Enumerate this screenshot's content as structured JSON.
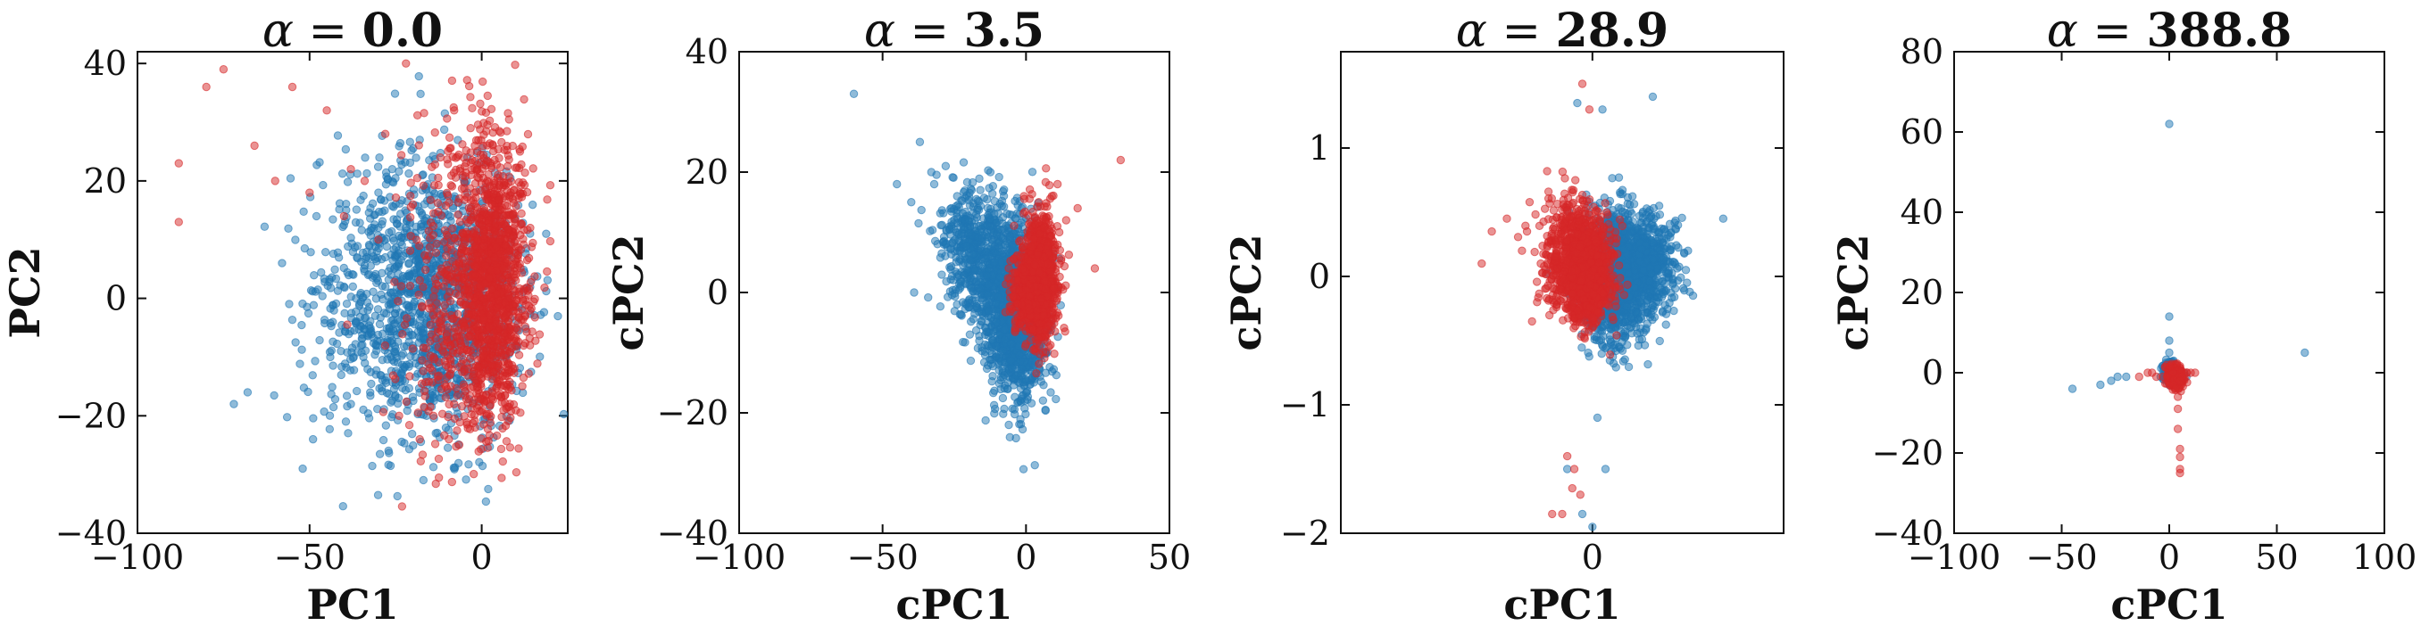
{
  "chart_data": [
    {
      "type": "scatter",
      "title": "α = 0.0",
      "title_symbol": "α",
      "title_value": "0.0",
      "xlabel": "PC1",
      "ylabel": "PC2",
      "xlim": [
        -100,
        25
      ],
      "ylim": [
        -40,
        42
      ],
      "xticks": [
        -100,
        -50,
        0
      ],
      "xtick_labels": [
        "−100",
        "−50",
        "0"
      ],
      "yticks": [
        -40,
        -20,
        0,
        20,
        40
      ],
      "ytick_labels": [
        "−40",
        "−20",
        "0",
        "20",
        "40"
      ],
      "series": [
        {
          "name": "background-blue",
          "color": "#1f77b4",
          "points": [
            [
              -72,
              -18
            ],
            [
              -68,
              -16
            ],
            [
              -52,
              -29
            ],
            [
              -49,
              -24
            ],
            [
              -30,
              18
            ],
            [
              -22,
              12
            ],
            [
              -18,
              27
            ],
            [
              -40,
              2
            ],
            [
              -35,
              -8
            ],
            [
              -12,
              16
            ],
            [
              -28,
              -14
            ],
            [
              -44,
              -10
            ],
            [
              -58,
              6
            ],
            [
              -16,
              -20
            ],
            [
              -24,
              6
            ],
            [
              -8,
              10
            ],
            [
              -14,
              -10
            ],
            [
              -32,
              12
            ],
            [
              -20,
              -4
            ],
            [
              -6,
              -14
            ],
            [
              -38,
              -18
            ],
            [
              -48,
              14
            ],
            [
              -26,
              22
            ],
            [
              -10,
              2
            ]
          ],
          "cloud": [
            {
              "center": [
                -12,
                0
              ],
              "spread": [
                12,
                11
              ],
              "count": 1100
            },
            {
              "center": [
                -30,
                -2
              ],
              "spread": [
                12,
                12
              ],
              "count": 360
            }
          ]
        },
        {
          "name": "foreground-red",
          "color": "#d62728",
          "points": [
            [
              -75,
              39
            ],
            [
              -55,
              36
            ],
            [
              -45,
              32
            ],
            [
              -22,
              40
            ],
            [
              -8,
              32
            ],
            [
              -88,
              23
            ],
            [
              -88,
              13
            ],
            [
              -80,
              36
            ],
            [
              -66,
              26
            ],
            [
              -60,
              20
            ],
            [
              -50,
              18
            ],
            [
              -40,
              14
            ],
            [
              -34,
              20
            ],
            [
              -30,
              10
            ],
            [
              -18,
              -24
            ],
            [
              -24,
              -20
            ],
            [
              -14,
              -20
            ],
            [
              -8,
              -18
            ],
            [
              -4,
              -12
            ],
            [
              -28,
              28
            ],
            [
              -38,
              22
            ],
            [
              -12,
              24
            ],
            [
              -20,
              16
            ],
            [
              -2,
              26
            ]
          ],
          "cloud": [
            {
              "center": [
                3,
                3
              ],
              "spread": [
                5,
                12
              ],
              "count": 1200
            },
            {
              "center": [
                -6,
                2
              ],
              "spread": [
                9,
                14
              ],
              "count": 420
            }
          ]
        }
      ]
    },
    {
      "type": "scatter",
      "title": "α = 3.5",
      "title_symbol": "α",
      "title_value": "3.5",
      "xlabel": "cPC1",
      "ylabel": "cPC2",
      "xlim": [
        -100,
        50
      ],
      "ylim": [
        -40,
        40
      ],
      "xticks": [
        -100,
        -50,
        0,
        50
      ],
      "xtick_labels": [
        "−100",
        "−50",
        "0",
        "50"
      ],
      "yticks": [
        -40,
        -20,
        0,
        20,
        40
      ],
      "ytick_labels": [
        "−40",
        "−20",
        "0",
        "20",
        "40"
      ],
      "series": [
        {
          "name": "background-blue",
          "color": "#1f77b4",
          "points": [
            [
              -60,
              33
            ],
            [
              -37,
              25
            ],
            [
              -33,
              20
            ],
            [
              -28,
              21
            ],
            [
              -45,
              18
            ],
            [
              -40,
              15
            ],
            [
              -39,
              0
            ],
            [
              -28,
              8
            ],
            [
              -6,
              -22
            ],
            [
              -24,
              16
            ],
            [
              -20,
              12
            ],
            [
              -16,
              10
            ],
            [
              -32,
              18
            ],
            [
              -26,
              14
            ],
            [
              -11,
              5
            ],
            [
              -2,
              -18
            ]
          ],
          "cloud": [
            {
              "center": [
                -3,
                -4
              ],
              "spread": [
                5,
                7
              ],
              "count": 1300
            },
            {
              "center": [
                -14,
                4
              ],
              "spread": [
                6,
                6
              ],
              "count": 520
            },
            {
              "center": [
                -22,
                10
              ],
              "spread": [
                5,
                4
              ],
              "count": 160
            }
          ]
        },
        {
          "name": "foreground-red",
          "color": "#d62728",
          "points": [
            [
              33,
              22
            ],
            [
              24,
              4
            ],
            [
              14,
              12
            ],
            [
              18,
              14
            ],
            [
              11,
              18
            ],
            [
              9,
              16
            ]
          ],
          "cloud": [
            {
              "center": [
                5,
                3
              ],
              "spread": [
                3,
                5
              ],
              "count": 900
            },
            {
              "center": [
                1,
                0
              ],
              "spread": [
                3,
                3
              ],
              "count": 420
            }
          ]
        }
      ]
    },
    {
      "type": "scatter",
      "title": "α = 28.9",
      "title_symbol": "α",
      "title_value": "28.9",
      "xlabel": "cPC1",
      "ylabel": "cPC2",
      "xlim": [
        -2.5,
        1.9
      ],
      "ylim": [
        -2,
        1.75
      ],
      "xticks": [
        0
      ],
      "xtick_labels": [
        "0"
      ],
      "yticks": [
        -2,
        -1,
        0,
        1
      ],
      "ytick_labels": [
        "−2",
        "−1",
        "0",
        "1"
      ],
      "series": [
        {
          "name": "background-blue",
          "color": "#1f77b4",
          "points": [
            [
              0.0,
              -1.95
            ],
            [
              -0.1,
              -1.85
            ],
            [
              0.13,
              -1.5
            ],
            [
              -0.25,
              -1.5
            ],
            [
              0.05,
              -1.1
            ],
            [
              0.85,
              0.4
            ],
            [
              1.3,
              0.45
            ],
            [
              1.0,
              -0.15
            ],
            [
              0.95,
              0.2
            ],
            [
              0.6,
              1.4
            ],
            [
              0.1,
              1.3
            ],
            [
              -0.15,
              1.35
            ]
          ],
          "cloud": [
            {
              "center": [
                0.25,
                0.0
              ],
              "spread": [
                0.18,
                0.24
              ],
              "count": 1450
            },
            {
              "center": [
                0.55,
                0.12
              ],
              "spread": [
                0.14,
                0.18
              ],
              "count": 420
            }
          ]
        },
        {
          "name": "foreground-red",
          "color": "#d62728",
          "points": [
            [
              -0.1,
              1.5
            ],
            [
              -0.03,
              1.3
            ],
            [
              -0.45,
              0.82
            ],
            [
              -0.65,
              0.35
            ],
            [
              -0.7,
              0.2
            ],
            [
              -1.0,
              0.35
            ],
            [
              -1.1,
              0.1
            ],
            [
              -0.85,
              0.45
            ],
            [
              -0.55,
              -0.2
            ],
            [
              -0.6,
              -0.35
            ],
            [
              -0.25,
              -1.4
            ],
            [
              -0.2,
              -1.65
            ],
            [
              -0.12,
              -1.7
            ],
            [
              -0.4,
              -1.85
            ],
            [
              -0.3,
              -1.85
            ],
            [
              -0.18,
              -1.5
            ]
          ],
          "cloud": [
            {
              "center": [
                -0.05,
                0.05
              ],
              "spread": [
                0.12,
                0.2
              ],
              "count": 1150
            },
            {
              "center": [
                -0.28,
                0.18
              ],
              "spread": [
                0.14,
                0.22
              ],
              "count": 320
            }
          ]
        }
      ]
    },
    {
      "type": "scatter",
      "title": "α = 388.8",
      "title_symbol": "α",
      "title_value": "388.8",
      "xlabel": "cPC1",
      "ylabel": "cPC2",
      "xlim": [
        -100,
        100
      ],
      "ylim": [
        -40,
        80
      ],
      "xticks": [
        -100,
        -50,
        0,
        50,
        100
      ],
      "xtick_labels": [
        "−100",
        "−50",
        "0",
        "50",
        "100"
      ],
      "yticks": [
        -40,
        -20,
        0,
        20,
        40,
        60,
        80
      ],
      "ytick_labels": [
        "−40",
        "−20",
        "0",
        "20",
        "40",
        "60",
        "80"
      ],
      "series": [
        {
          "name": "background-blue",
          "color": "#1f77b4",
          "points": [
            [
              0,
              62
            ],
            [
              63,
              5
            ],
            [
              -45,
              -4
            ],
            [
              -32,
              -3
            ],
            [
              -27,
              -2
            ],
            [
              -24,
              -1
            ],
            [
              -20,
              -1
            ],
            [
              0,
              14
            ],
            [
              0,
              8
            ],
            [
              0,
              5
            ],
            [
              -1,
              2
            ],
            [
              1,
              2
            ],
            [
              2,
              3
            ],
            [
              -2,
              1
            ],
            [
              3,
              1
            ],
            [
              4,
              0
            ],
            [
              0,
              -2
            ],
            [
              -4,
              -1
            ],
            [
              8,
              -1
            ],
            [
              7,
              0
            ]
          ],
          "cloud": [
            {
              "center": [
                0,
                0
              ],
              "spread": [
                1.2,
                1.2
              ],
              "count": 200
            }
          ]
        },
        {
          "name": "foreground-red",
          "color": "#d62728",
          "points": [
            [
              -14,
              -1
            ],
            [
              -10,
              0
            ],
            [
              -8,
              0
            ],
            [
              -6,
              -1
            ],
            [
              4,
              -6
            ],
            [
              4,
              -9
            ],
            [
              4,
              -14
            ],
            [
              5,
              -19
            ],
            [
              5,
              -21
            ],
            [
              5,
              -24
            ],
            [
              5,
              -25
            ],
            [
              8,
              0
            ],
            [
              6,
              -1
            ],
            [
              10,
              0
            ],
            [
              12,
              0
            ],
            [
              2,
              -3
            ],
            [
              3,
              -4
            ],
            [
              5,
              -2
            ],
            [
              -3,
              -1
            ],
            [
              -1,
              -1
            ]
          ],
          "cloud": [
            {
              "center": [
                3,
                -1
              ],
              "spread": [
                2,
                1.5
              ],
              "count": 240
            }
          ]
        }
      ]
    }
  ]
}
